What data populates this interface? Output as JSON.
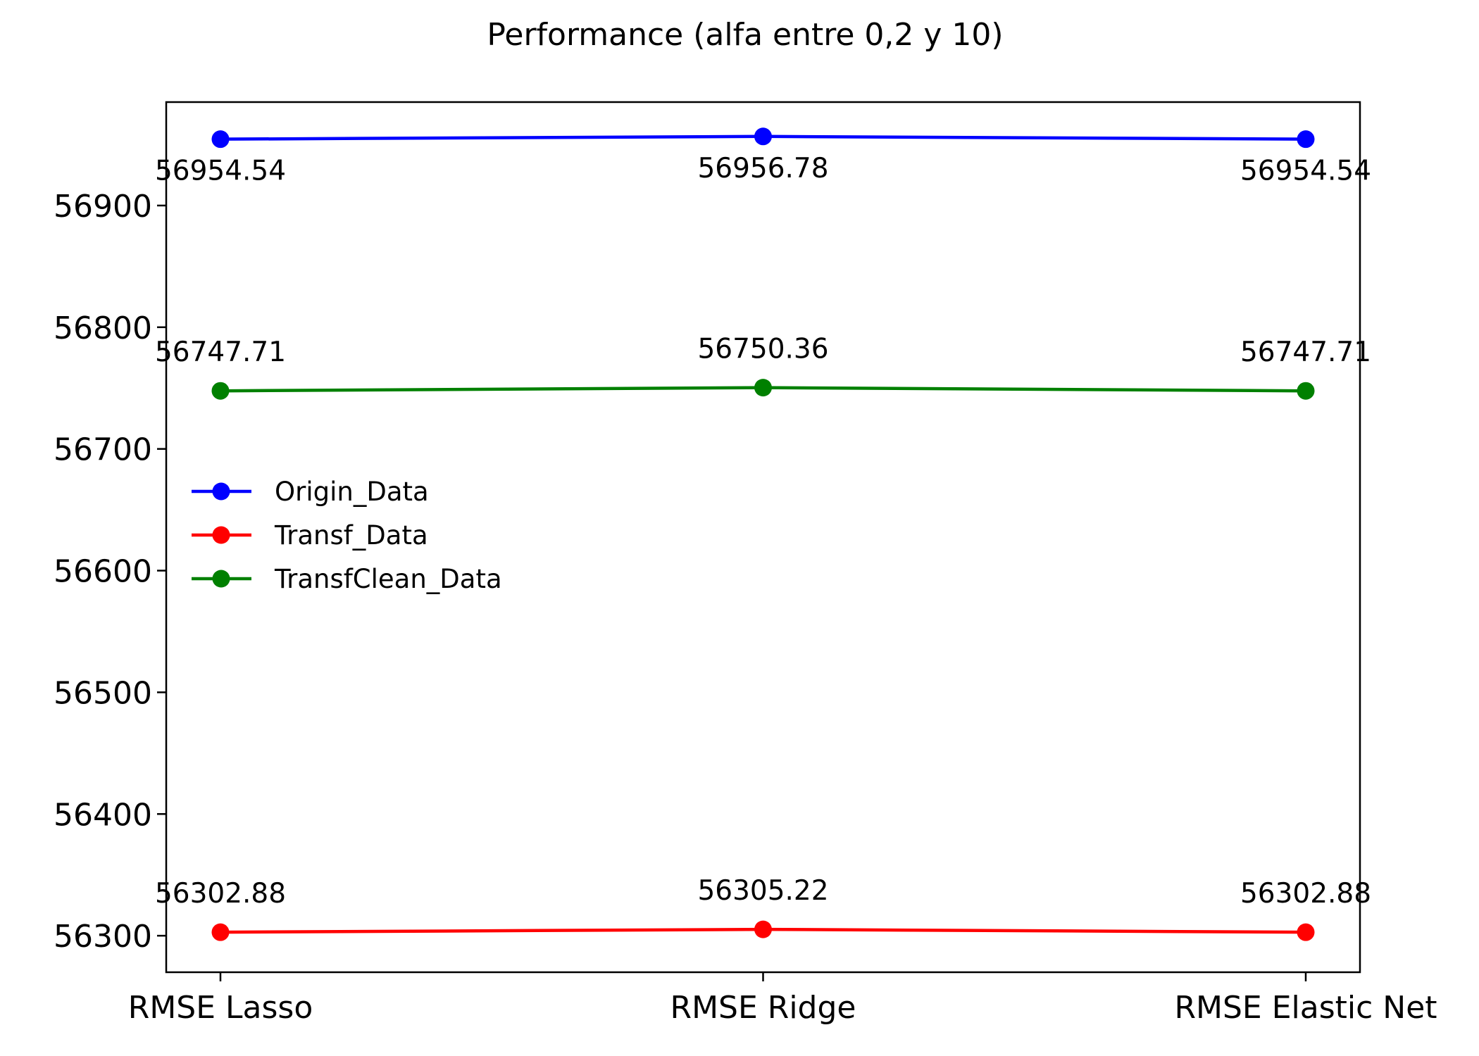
{
  "chart_data": {
    "type": "line",
    "title": "Performance (alfa entre 0,2 y 10)",
    "xlabel": "",
    "ylabel": "",
    "categories": [
      "RMSE Lasso",
      "RMSE Ridge",
      "RMSE Elastic Net"
    ],
    "series": [
      {
        "name": "Origin_Data",
        "color": "#0000ff",
        "values": [
          56954.54,
          56956.78,
          56954.54
        ],
        "labels": [
          "56954.54",
          "56956.78",
          "56954.54"
        ],
        "label_position": "below"
      },
      {
        "name": "Transf_Data",
        "color": "#ff0000",
        "values": [
          56302.88,
          56305.22,
          56302.88
        ],
        "labels": [
          "56302.88",
          "56305.22",
          "56302.88"
        ],
        "label_position": "above"
      },
      {
        "name": "TransfClean_Data",
        "color": "#008000",
        "values": [
          56747.71,
          56750.36,
          56747.71
        ],
        "labels": [
          "56747.71",
          "56750.36",
          "56747.71"
        ],
        "label_position": "above"
      }
    ],
    "yticks": [
      56300,
      56400,
      56500,
      56600,
      56700,
      56800,
      56900
    ],
    "ylim": [
      56270,
      56985
    ],
    "grid": false,
    "legend_position": "center-left",
    "marker": "circle"
  }
}
